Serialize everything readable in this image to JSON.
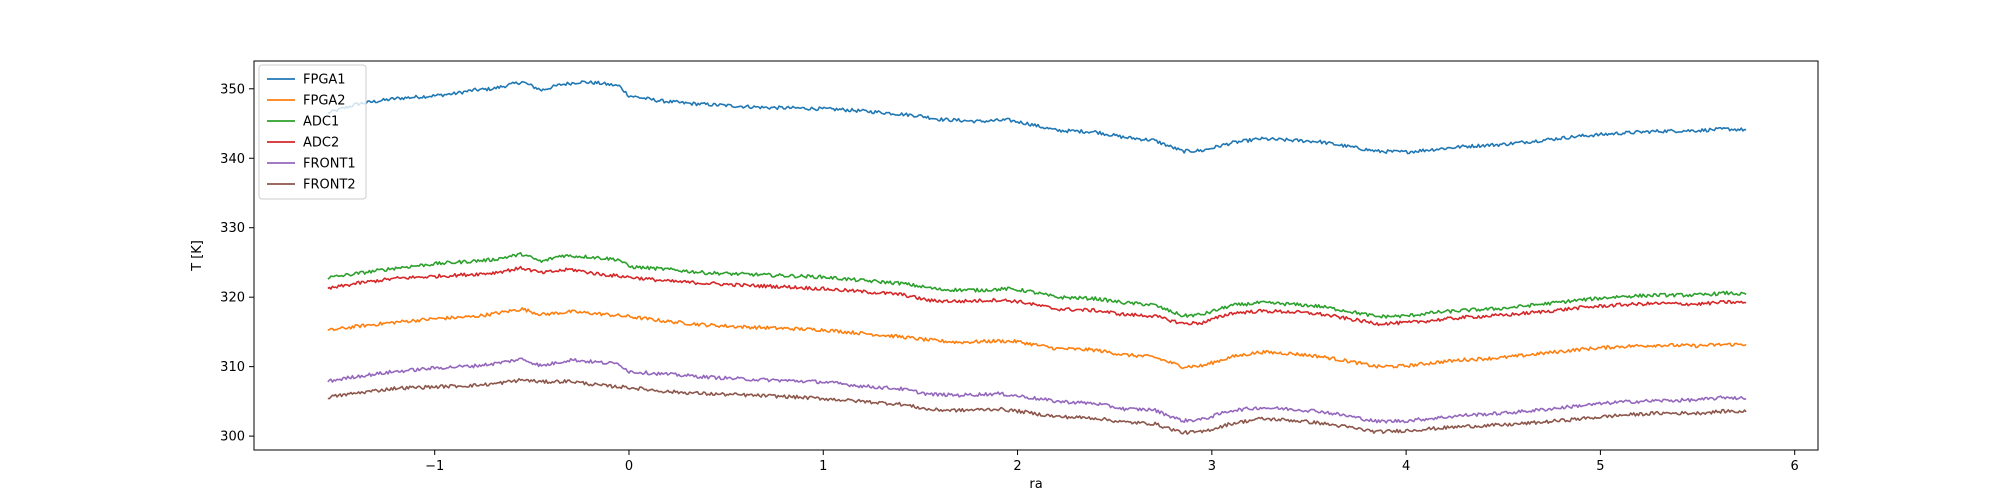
{
  "chart_data": {
    "type": "line",
    "title": "",
    "xlabel": "ra",
    "ylabel": "T [K]",
    "xlim": [
      -1.93,
      6.12
    ],
    "ylim": [
      298,
      354
    ],
    "xticks": [
      -1,
      0,
      1,
      2,
      3,
      4,
      5,
      6
    ],
    "xtick_labels": [
      "−1",
      "0",
      "1",
      "2",
      "3",
      "4",
      "5",
      "6"
    ],
    "yticks": [
      300,
      310,
      320,
      330,
      340,
      350
    ],
    "ytick_labels": [
      "300",
      "310",
      "320",
      "330",
      "340",
      "350"
    ],
    "grid": false,
    "legend_position": "upper-left",
    "series": [
      {
        "name": "FPGA1",
        "color": "#1f77b4",
        "points": [
          [
            -1.55,
            346.5
          ],
          [
            -1.4,
            347.8
          ],
          [
            -1.2,
            348.6
          ],
          [
            -1.0,
            349.0
          ],
          [
            -0.9,
            349.3
          ],
          [
            -0.8,
            349.8
          ],
          [
            -0.7,
            350.0
          ],
          [
            -0.55,
            351.0
          ],
          [
            -0.45,
            349.8
          ],
          [
            -0.35,
            350.6
          ],
          [
            -0.25,
            351.0
          ],
          [
            -0.15,
            350.8
          ],
          [
            -0.05,
            350.4
          ],
          [
            0.0,
            349.0
          ],
          [
            0.15,
            348.3
          ],
          [
            0.3,
            347.9
          ],
          [
            0.5,
            347.6
          ],
          [
            0.7,
            347.3
          ],
          [
            0.9,
            347.2
          ],
          [
            1.1,
            347.0
          ],
          [
            1.3,
            346.6
          ],
          [
            1.5,
            346.1
          ],
          [
            1.6,
            345.6
          ],
          [
            1.8,
            345.3
          ],
          [
            1.95,
            345.5
          ],
          [
            2.05,
            345.0
          ],
          [
            2.2,
            344.0
          ],
          [
            2.4,
            343.8
          ],
          [
            2.55,
            343.0
          ],
          [
            2.7,
            342.6
          ],
          [
            2.85,
            341.0
          ],
          [
            2.95,
            341.1
          ],
          [
            3.1,
            342.2
          ],
          [
            3.25,
            342.8
          ],
          [
            3.4,
            342.6
          ],
          [
            3.55,
            342.4
          ],
          [
            3.7,
            341.7
          ],
          [
            3.85,
            341.0
          ],
          [
            4.0,
            340.9
          ],
          [
            4.15,
            341.3
          ],
          [
            4.3,
            341.7
          ],
          [
            4.5,
            342.0
          ],
          [
            4.7,
            342.6
          ],
          [
            4.9,
            343.2
          ],
          [
            5.1,
            343.6
          ],
          [
            5.3,
            343.9
          ],
          [
            5.5,
            344.0
          ],
          [
            5.65,
            344.2
          ],
          [
            5.75,
            344.1
          ]
        ]
      },
      {
        "name": "FPGA2",
        "color": "#ff7f0e",
        "points": [
          [
            -1.55,
            315.2
          ],
          [
            -1.4,
            315.8
          ],
          [
            -1.2,
            316.4
          ],
          [
            -1.0,
            316.9
          ],
          [
            -0.8,
            317.2
          ],
          [
            -0.7,
            317.6
          ],
          [
            -0.55,
            318.3
          ],
          [
            -0.45,
            317.5
          ],
          [
            -0.3,
            317.9
          ],
          [
            -0.15,
            317.6
          ],
          [
            0.0,
            317.2
          ],
          [
            0.2,
            316.5
          ],
          [
            0.4,
            316.0
          ],
          [
            0.6,
            315.7
          ],
          [
            0.8,
            315.5
          ],
          [
            1.0,
            315.3
          ],
          [
            1.2,
            314.8
          ],
          [
            1.4,
            314.3
          ],
          [
            1.55,
            313.8
          ],
          [
            1.7,
            313.5
          ],
          [
            1.9,
            313.7
          ],
          [
            2.0,
            313.6
          ],
          [
            2.2,
            312.6
          ],
          [
            2.4,
            312.4
          ],
          [
            2.55,
            311.7
          ],
          [
            2.7,
            311.4
          ],
          [
            2.85,
            310.0
          ],
          [
            2.95,
            310.1
          ],
          [
            3.1,
            311.4
          ],
          [
            3.25,
            312.1
          ],
          [
            3.4,
            311.9
          ],
          [
            3.55,
            311.5
          ],
          [
            3.7,
            310.8
          ],
          [
            3.85,
            310.0
          ],
          [
            4.0,
            310.1
          ],
          [
            4.15,
            310.6
          ],
          [
            4.3,
            311.0
          ],
          [
            4.5,
            311.3
          ],
          [
            4.7,
            311.9
          ],
          [
            4.9,
            312.5
          ],
          [
            5.1,
            312.9
          ],
          [
            5.3,
            313.1
          ],
          [
            5.5,
            313.0
          ],
          [
            5.65,
            313.2
          ],
          [
            5.75,
            313.2
          ]
        ]
      },
      {
        "name": "ADC1",
        "color": "#2ca02c",
        "points": [
          [
            -1.55,
            322.8
          ],
          [
            -1.4,
            323.4
          ],
          [
            -1.2,
            324.2
          ],
          [
            -1.0,
            324.8
          ],
          [
            -0.8,
            325.2
          ],
          [
            -0.7,
            325.4
          ],
          [
            -0.55,
            326.2
          ],
          [
            -0.45,
            325.1
          ],
          [
            -0.35,
            326.0
          ],
          [
            -0.2,
            325.8
          ],
          [
            -0.05,
            325.4
          ],
          [
            0.0,
            324.4
          ],
          [
            0.2,
            324.0
          ],
          [
            0.4,
            323.5
          ],
          [
            0.6,
            323.3
          ],
          [
            0.8,
            323.1
          ],
          [
            1.0,
            322.9
          ],
          [
            1.2,
            322.4
          ],
          [
            1.4,
            322.0
          ],
          [
            1.6,
            321.1
          ],
          [
            1.8,
            321.0
          ],
          [
            1.95,
            321.2
          ],
          [
            2.05,
            320.9
          ],
          [
            2.2,
            320.0
          ],
          [
            2.4,
            319.8
          ],
          [
            2.55,
            319.2
          ],
          [
            2.7,
            318.9
          ],
          [
            2.85,
            317.3
          ],
          [
            2.95,
            317.5
          ],
          [
            3.1,
            318.8
          ],
          [
            3.25,
            319.2
          ],
          [
            3.4,
            319.0
          ],
          [
            3.55,
            318.7
          ],
          [
            3.7,
            318.0
          ],
          [
            3.85,
            317.2
          ],
          [
            4.0,
            317.3
          ],
          [
            4.15,
            317.8
          ],
          [
            4.3,
            318.1
          ],
          [
            4.5,
            318.4
          ],
          [
            4.7,
            319.0
          ],
          [
            4.9,
            319.6
          ],
          [
            5.1,
            320.1
          ],
          [
            5.3,
            320.3
          ],
          [
            5.5,
            320.3
          ],
          [
            5.65,
            320.6
          ],
          [
            5.75,
            320.4
          ]
        ]
      },
      {
        "name": "ADC2",
        "color": "#d62728",
        "points": [
          [
            -1.55,
            321.2
          ],
          [
            -1.4,
            322.0
          ],
          [
            -1.2,
            322.7
          ],
          [
            -1.0,
            323.0
          ],
          [
            -0.8,
            323.3
          ],
          [
            -0.7,
            323.5
          ],
          [
            -0.55,
            324.2
          ],
          [
            -0.45,
            323.5
          ],
          [
            -0.3,
            324.0
          ],
          [
            -0.15,
            323.3
          ],
          [
            0.0,
            322.9
          ],
          [
            0.2,
            322.3
          ],
          [
            0.4,
            322.0
          ],
          [
            0.6,
            321.7
          ],
          [
            0.8,
            321.5
          ],
          [
            1.0,
            321.2
          ],
          [
            1.2,
            320.8
          ],
          [
            1.4,
            320.4
          ],
          [
            1.55,
            319.5
          ],
          [
            1.7,
            319.4
          ],
          [
            1.9,
            319.6
          ],
          [
            2.0,
            319.4
          ],
          [
            2.2,
            318.3
          ],
          [
            2.4,
            318.1
          ],
          [
            2.55,
            317.5
          ],
          [
            2.7,
            317.3
          ],
          [
            2.85,
            316.2
          ],
          [
            2.95,
            316.3
          ],
          [
            3.1,
            317.7
          ],
          [
            3.25,
            318.0
          ],
          [
            3.4,
            317.9
          ],
          [
            3.55,
            317.6
          ],
          [
            3.7,
            316.9
          ],
          [
            3.85,
            316.2
          ],
          [
            4.0,
            316.3
          ],
          [
            4.15,
            316.7
          ],
          [
            4.3,
            317.1
          ],
          [
            4.5,
            317.4
          ],
          [
            4.7,
            317.9
          ],
          [
            4.9,
            318.5
          ],
          [
            5.1,
            318.9
          ],
          [
            5.3,
            319.1
          ],
          [
            5.5,
            319.0
          ],
          [
            5.65,
            319.3
          ],
          [
            5.75,
            319.2
          ]
        ]
      },
      {
        "name": "FRONT1",
        "color": "#9467bd",
        "points": [
          [
            -1.55,
            307.9
          ],
          [
            -1.4,
            308.6
          ],
          [
            -1.2,
            309.3
          ],
          [
            -1.0,
            309.8
          ],
          [
            -0.8,
            310.1
          ],
          [
            -0.7,
            310.4
          ],
          [
            -0.55,
            311.1
          ],
          [
            -0.45,
            310.1
          ],
          [
            -0.3,
            311.0
          ],
          [
            -0.15,
            310.6
          ],
          [
            -0.05,
            310.4
          ],
          [
            0.0,
            309.3
          ],
          [
            0.2,
            308.9
          ],
          [
            0.4,
            308.5
          ],
          [
            0.6,
            308.2
          ],
          [
            0.8,
            308.0
          ],
          [
            1.0,
            307.8
          ],
          [
            1.2,
            307.2
          ],
          [
            1.4,
            306.8
          ],
          [
            1.55,
            306.0
          ],
          [
            1.7,
            305.9
          ],
          [
            1.9,
            306.1
          ],
          [
            2.0,
            305.8
          ],
          [
            2.2,
            305.0
          ],
          [
            2.4,
            304.7
          ],
          [
            2.55,
            303.9
          ],
          [
            2.7,
            303.8
          ],
          [
            2.85,
            302.2
          ],
          [
            2.95,
            302.4
          ],
          [
            3.1,
            303.7
          ],
          [
            3.25,
            304.1
          ],
          [
            3.4,
            303.9
          ],
          [
            3.55,
            303.6
          ],
          [
            3.7,
            302.9
          ],
          [
            3.85,
            302.1
          ],
          [
            4.0,
            302.2
          ],
          [
            4.15,
            302.6
          ],
          [
            4.3,
            303.0
          ],
          [
            4.5,
            303.3
          ],
          [
            4.7,
            303.8
          ],
          [
            4.9,
            304.4
          ],
          [
            5.1,
            304.9
          ],
          [
            5.3,
            305.1
          ],
          [
            5.5,
            305.2
          ],
          [
            5.65,
            305.6
          ],
          [
            5.75,
            305.4
          ]
        ]
      },
      {
        "name": "FRONT2",
        "color": "#8c564b",
        "points": [
          [
            -1.55,
            305.6
          ],
          [
            -1.4,
            306.2
          ],
          [
            -1.2,
            306.9
          ],
          [
            -1.0,
            307.1
          ],
          [
            -0.8,
            307.3
          ],
          [
            -0.7,
            307.5
          ],
          [
            -0.55,
            308.1
          ],
          [
            -0.45,
            307.8
          ],
          [
            -0.3,
            307.9
          ],
          [
            -0.15,
            307.3
          ],
          [
            0.0,
            307.0
          ],
          [
            0.2,
            306.4
          ],
          [
            0.4,
            306.1
          ],
          [
            0.6,
            305.9
          ],
          [
            0.8,
            305.7
          ],
          [
            1.0,
            305.4
          ],
          [
            1.2,
            305.0
          ],
          [
            1.4,
            304.6
          ],
          [
            1.55,
            303.8
          ],
          [
            1.7,
            303.7
          ],
          [
            1.9,
            303.9
          ],
          [
            2.0,
            303.6
          ],
          [
            2.2,
            302.8
          ],
          [
            2.4,
            302.6
          ],
          [
            2.55,
            302.0
          ],
          [
            2.7,
            301.8
          ],
          [
            2.85,
            300.5
          ],
          [
            2.95,
            300.6
          ],
          [
            3.1,
            301.8
          ],
          [
            3.25,
            302.5
          ],
          [
            3.4,
            302.3
          ],
          [
            3.55,
            301.9
          ],
          [
            3.7,
            301.3
          ],
          [
            3.85,
            300.6
          ],
          [
            4.0,
            300.8
          ],
          [
            4.15,
            301.1
          ],
          [
            4.3,
            301.4
          ],
          [
            4.5,
            301.6
          ],
          [
            4.7,
            302.0
          ],
          [
            4.9,
            302.5
          ],
          [
            5.1,
            303.0
          ],
          [
            5.3,
            303.3
          ],
          [
            5.5,
            303.3
          ],
          [
            5.65,
            303.6
          ],
          [
            5.75,
            303.5
          ]
        ]
      }
    ]
  }
}
